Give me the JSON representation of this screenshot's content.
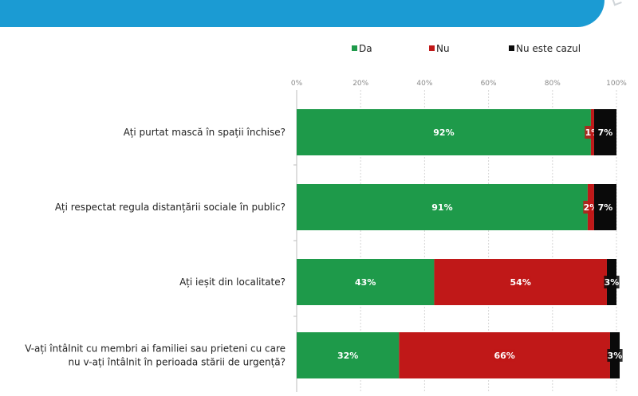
{
  "chart_data": {
    "type": "bar",
    "orientation": "horizontal",
    "stacked": true,
    "categories": [
      [
        "Ați purtat mască în spații închise?"
      ],
      [
        "Ați respectat regula distanțării sociale în public?"
      ],
      [
        "Ați ieșit din localitate?"
      ],
      [
        "V-ați întâlnit  cu membri ai familiei sau prieteni cu care",
        "nu v-ați întâlnit  în perioada stării de urgență?"
      ]
    ],
    "series": [
      {
        "name": "Da",
        "color": "#1e9a4a",
        "values": [
          92,
          91,
          43,
          32
        ],
        "labels": [
          "92%",
          "91%",
          "43%",
          "32%"
        ]
      },
      {
        "name": "Nu",
        "color": "#c01818",
        "values": [
          1,
          2,
          54,
          66
        ],
        "labels": [
          "1%",
          "2%",
          "54%",
          "66%"
        ]
      },
      {
        "name": "Nu este cazul",
        "color": "#0a0a0a",
        "values": [
          7,
          7,
          3,
          3
        ],
        "labels": [
          "7%",
          "7%",
          "3%",
          "3%"
        ]
      }
    ],
    "xlim": [
      0,
      100
    ],
    "xticks": [
      "0%",
      "20%",
      "40%",
      "60%",
      "80%",
      "100%"
    ],
    "legend_position": "top",
    "grid": true
  }
}
